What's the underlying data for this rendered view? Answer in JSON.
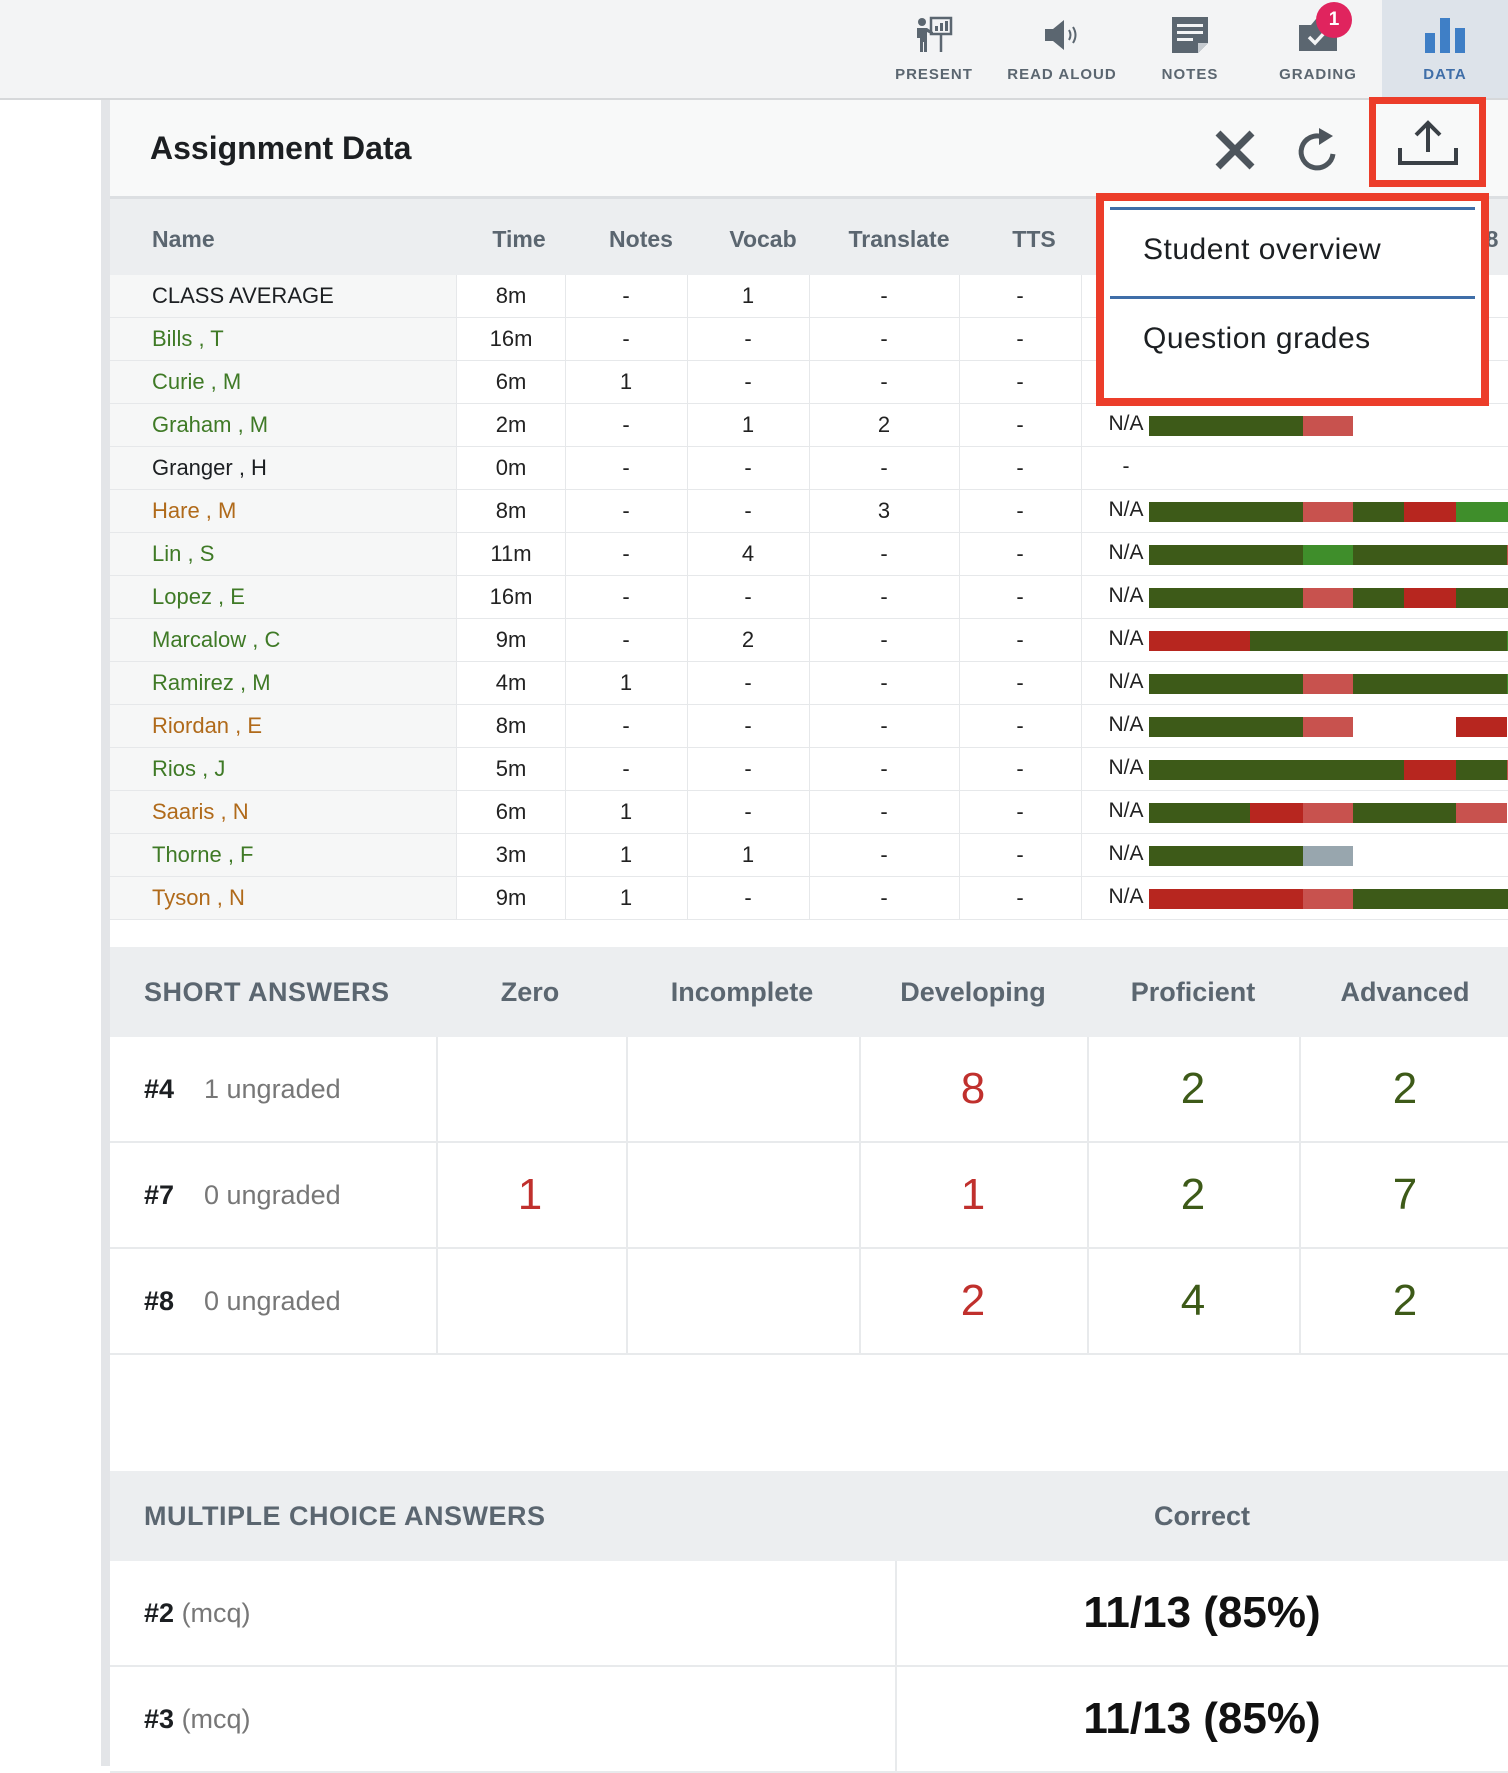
{
  "toolbar": {
    "items": [
      {
        "label": "PRESENT",
        "icon": "presenter-board-icon"
      },
      {
        "label": "READ ALOUD",
        "icon": "speaker-icon"
      },
      {
        "label": "NOTES",
        "icon": "notes-icon"
      },
      {
        "label": "GRADING",
        "icon": "grading-icon",
        "badge": "1"
      },
      {
        "label": "DATA",
        "icon": "bar-chart-icon",
        "active": true
      }
    ]
  },
  "panel": {
    "title": "Assignment Data"
  },
  "export_menu": {
    "items": [
      "Student overview",
      "Question grades"
    ]
  },
  "student_table": {
    "headers": [
      "Name",
      "Time",
      "Notes",
      "Vocab",
      "Translate",
      "TTS"
    ],
    "clipped_header_char": "8",
    "rows": [
      {
        "name": "CLASS AVERAGE",
        "color": "#1c1f22",
        "time": "8m",
        "notes": "-",
        "vocab": "1",
        "translate": "-",
        "tts": "-",
        "status": ""
      },
      {
        "name": "Bills , T",
        "color": "#3f7a26",
        "time": "16m",
        "notes": "-",
        "vocab": "-",
        "translate": "-",
        "tts": "-",
        "status": ""
      },
      {
        "name": "Curie , M",
        "color": "#3f7a26",
        "time": "6m",
        "notes": "1",
        "vocab": "-",
        "translate": "-",
        "tts": "-",
        "status": ""
      },
      {
        "name": "Graham , M",
        "color": "#3f7a26",
        "time": "2m",
        "notes": "-",
        "vocab": "1",
        "translate": "2",
        "tts": "-",
        "status": "N/A"
      },
      {
        "name": "Granger , H",
        "color": "#1c1f22",
        "time": "0m",
        "notes": "-",
        "vocab": "-",
        "translate": "-",
        "tts": "-",
        "status": "-"
      },
      {
        "name": "Hare , M",
        "color": "#b06a1a",
        "time": "8m",
        "notes": "-",
        "vocab": "-",
        "translate": "3",
        "tts": "-",
        "status": "N/A"
      },
      {
        "name": "Lin , S",
        "color": "#3f7a26",
        "time": "11m",
        "notes": "-",
        "vocab": "4",
        "translate": "-",
        "tts": "-",
        "status": "N/A"
      },
      {
        "name": "Lopez , E",
        "color": "#3f7a26",
        "time": "16m",
        "notes": "-",
        "vocab": "-",
        "translate": "-",
        "tts": "-",
        "status": "N/A"
      },
      {
        "name": "Marcalow , C",
        "color": "#3f7a26",
        "time": "9m",
        "notes": "-",
        "vocab": "2",
        "translate": "-",
        "tts": "-",
        "status": "N/A"
      },
      {
        "name": "Ramirez , M",
        "color": "#3f7a26",
        "time": "4m",
        "notes": "1",
        "vocab": "-",
        "translate": "-",
        "tts": "-",
        "status": "N/A"
      },
      {
        "name": "Riordan , E",
        "color": "#b06a1a",
        "time": "8m",
        "notes": "-",
        "vocab": "-",
        "translate": "-",
        "tts": "-",
        "status": "N/A"
      },
      {
        "name": "Rios , J",
        "color": "#3f7a26",
        "time": "5m",
        "notes": "-",
        "vocab": "-",
        "translate": "-",
        "tts": "-",
        "status": "N/A"
      },
      {
        "name": "Saaris , N",
        "color": "#b06a1a",
        "time": "6m",
        "notes": "1",
        "vocab": "-",
        "translate": "-",
        "tts": "-",
        "status": "N/A"
      },
      {
        "name": "Thorne , F",
        "color": "#3f7a26",
        "time": "3m",
        "notes": "1",
        "vocab": "1",
        "translate": "-",
        "tts": "-",
        "status": "N/A"
      },
      {
        "name": "Tyson , N",
        "color": "#b06a1a",
        "time": "9m",
        "notes": "1",
        "vocab": "-",
        "translate": "-",
        "tts": "-",
        "status": "N/A"
      }
    ]
  },
  "segment_colors": {
    "D": "#3d5a18",
    "G": "#3f8e2b",
    "P": "#c8524e",
    "R": "#b7261f",
    "S": "#98a6ae",
    "E": "transparent"
  },
  "progress_bars": [
    [],
    [],
    [
      "E",
      "E",
      "E",
      "E",
      "E",
      "E",
      "E",
      "G"
    ],
    [
      "D",
      "D",
      "P"
    ],
    [],
    [
      "D",
      "D",
      "P",
      "D",
      "R",
      "G",
      "G",
      "G"
    ],
    [
      "D",
      "D",
      "G",
      "D",
      "D",
      "D",
      "P",
      "P"
    ],
    [
      "D",
      "D",
      "P",
      "D",
      "R",
      "D",
      "D",
      "D"
    ],
    [
      "R",
      "D",
      "D",
      "D",
      "D",
      "D",
      "G",
      "G"
    ],
    [
      "D",
      "D",
      "P",
      "D",
      "D",
      "D",
      "G",
      "G"
    ],
    [
      "D",
      "D",
      "P",
      "E",
      "E",
      "R"
    ],
    [
      "D",
      "D",
      "D",
      "D",
      "R",
      "D",
      "P",
      "P"
    ],
    [
      "D",
      "R",
      "P",
      "D",
      "D",
      "P"
    ],
    [
      "D",
      "D",
      "S"
    ],
    [
      "R",
      "R",
      "P",
      "D",
      "D",
      "D",
      "D",
      "D"
    ]
  ],
  "short_answers": {
    "title": "SHORT ANSWERS",
    "columns": [
      "Zero",
      "Incomplete",
      "Developing",
      "Proficient",
      "Advanced"
    ],
    "rows": [
      {
        "q": "#4",
        "ungraded": "1 ungraded",
        "values": [
          "",
          "",
          "8",
          "2",
          "2"
        ]
      },
      {
        "q": "#7",
        "ungraded": "0 ungraded",
        "values": [
          "1",
          "",
          "1",
          "2",
          "7"
        ]
      },
      {
        "q": "#8",
        "ungraded": "0 ungraded",
        "values": [
          "",
          "",
          "2",
          "4",
          "2"
        ]
      }
    ]
  },
  "multiple_choice": {
    "title": "MULTIPLE CHOICE ANSWERS",
    "column": "Correct",
    "rows": [
      {
        "q": "#2",
        "type": "(mcq)",
        "correct": "11/13 (85%)"
      },
      {
        "q": "#3",
        "type": "(mcq)",
        "correct": "11/13 (85%)"
      }
    ]
  }
}
